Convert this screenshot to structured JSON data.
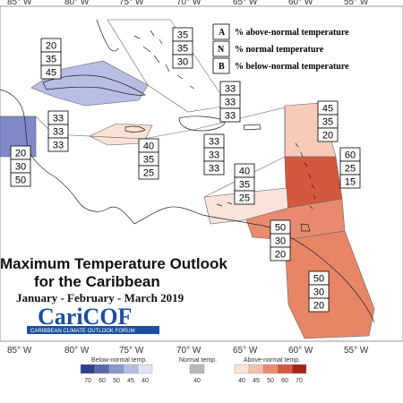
{
  "longitude_labels": [
    "85° W",
    "80° W",
    "75° W",
    "70° W",
    "65° W",
    "60° W",
    "55° W"
  ],
  "key": [
    {
      "letter": "A",
      "text": "% above-normal temperature"
    },
    {
      "letter": "N",
      "text": "% normal temperature"
    },
    {
      "letter": "B",
      "text": "% below-normal temperature"
    }
  ],
  "title": {
    "line1": "Maximum Temperature Outlook",
    "line2": "for the Caribbean",
    "period": "January - February - March 2019"
  },
  "logo": {
    "name": "CariCOF",
    "tagline": "CARIBBEAN CLIMATE OUTLOOK FORUM"
  },
  "probability_boxes": [
    {
      "region": "cuba-west",
      "values": [
        "20",
        "35",
        "45"
      ]
    },
    {
      "region": "bahamas",
      "values": [
        "35",
        "35",
        "30"
      ]
    },
    {
      "region": "belize",
      "values": [
        "33",
        "33",
        "33"
      ]
    },
    {
      "region": "central-america",
      "values": [
        "20",
        "30",
        "50"
      ]
    },
    {
      "region": "turks-caicos",
      "values": [
        "33",
        "33",
        "33"
      ]
    },
    {
      "region": "jamaica",
      "values": [
        "40",
        "35",
        "25"
      ]
    },
    {
      "region": "hispaniola",
      "values": [
        "33",
        "33",
        "33"
      ]
    },
    {
      "region": "leeward-north",
      "values": [
        "45",
        "35",
        "20"
      ]
    },
    {
      "region": "lesser-antilles",
      "values": [
        "60",
        "25",
        "15"
      ]
    },
    {
      "region": "abc-islands",
      "values": [
        "40",
        "35",
        "25"
      ]
    },
    {
      "region": "trinidad",
      "values": [
        "50",
        "30",
        "20"
      ]
    },
    {
      "region": "guianas",
      "values": [
        "50",
        "30",
        "20"
      ]
    }
  ],
  "legend": {
    "below_label": "Below-normal temp.",
    "normal_label": "Normal temp.",
    "above_label": "Above-normal temp.",
    "below_ticks": [
      "70",
      "60",
      "50",
      "45",
      "40"
    ],
    "normal_ticks": [
      "40"
    ],
    "above_ticks": [
      "40",
      "45",
      "50",
      "60",
      "70"
    ],
    "below_colors": [
      "#2f3f8f",
      "#5868b0",
      "#8b96cc",
      "#b6bde0",
      "#dfe2f2"
    ],
    "normal_color": "#b8b8b8",
    "above_colors": [
      "#fbe3da",
      "#f6c0ad",
      "#ea8b6f",
      "#d4583d",
      "#a8221c"
    ]
  }
}
